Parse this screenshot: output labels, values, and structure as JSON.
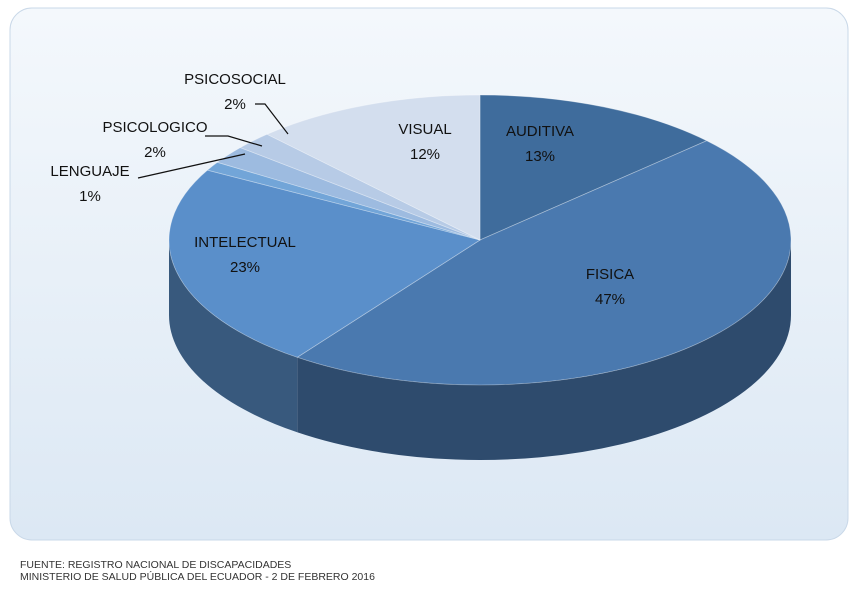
{
  "chart_data": {
    "type": "pie",
    "categories": [
      "AUDITIVA",
      "FISICA",
      "INTELECTUAL",
      "LENGUAJE",
      "PSICOLOGICO",
      "PSICOSOCIAL",
      "VISUAL"
    ],
    "values": [
      13,
      47,
      23,
      1,
      2,
      2,
      12
    ],
    "value_labels": [
      "13%",
      "47%",
      "23%",
      "1%",
      "2%",
      "2%",
      "12%"
    ],
    "colors": [
      "#3f6c9c",
      "#4a79af",
      "#5a8fca",
      "#72a5d8",
      "#9dbbe0",
      "#b7cbe6",
      "#d3deee"
    ],
    "source": [
      "FUENTE: REGISTRO NACIONAL DE DISCAPACIDADES",
      "MINISTERIO DE SALUD PÚBLICA DEL ECUADOR - 2 DE FEBRERO 2016"
    ]
  }
}
